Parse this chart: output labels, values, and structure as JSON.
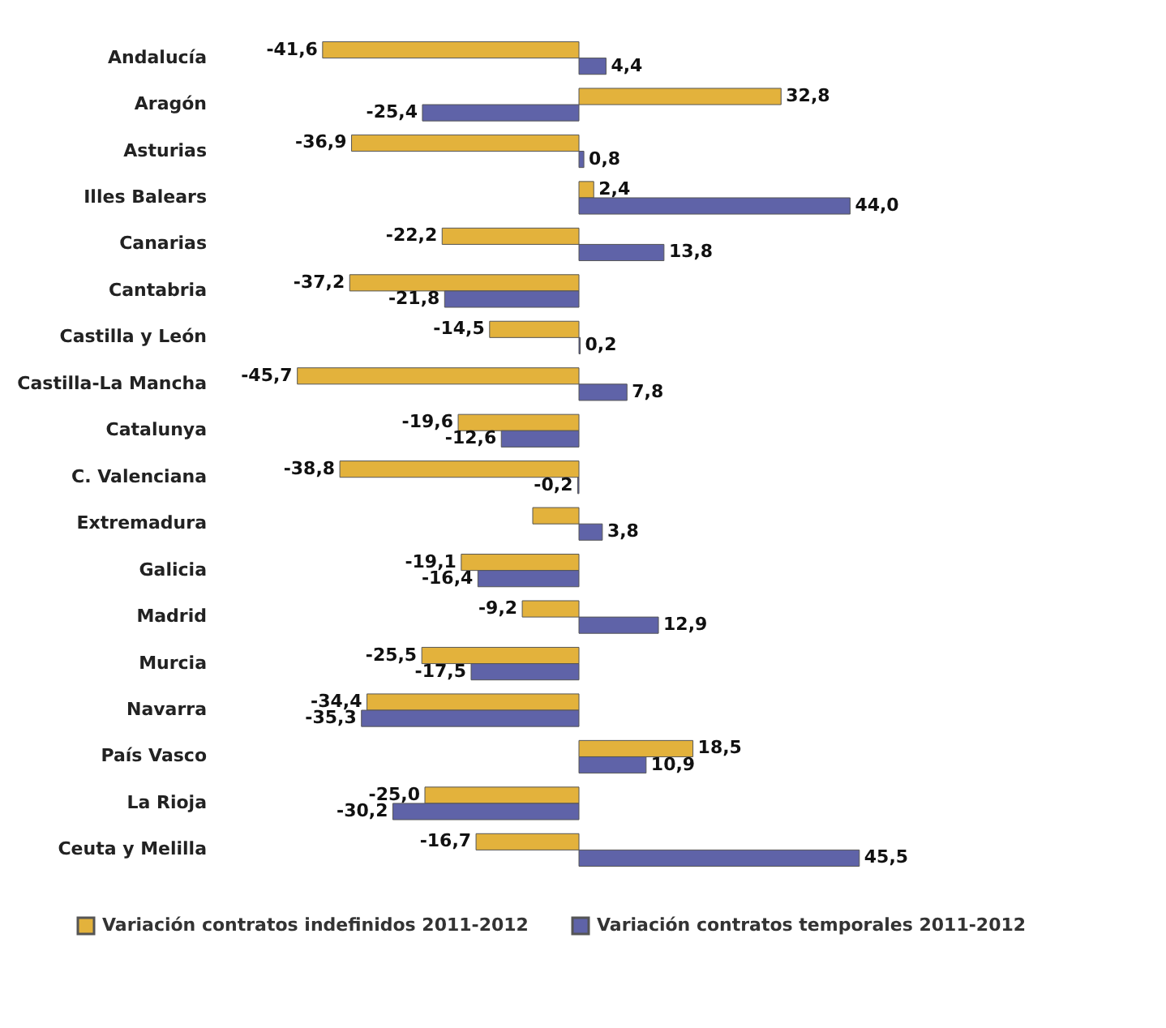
{
  "chart_data": {
    "type": "bar",
    "orientation": "horizontal",
    "legend": "bottom",
    "categories": [
      "Andalucía",
      "Aragón",
      "Asturias",
      "Illes Balears",
      "Canarias",
      "Cantabria",
      "Castilla y León",
      "Castilla-La Mancha",
      "Catalunya",
      "C. Valenciana",
      "Extremadura",
      "Galicia",
      "Madrid",
      "Murcia",
      "Navarra",
      "País Vasco",
      "La Rioja",
      "Ceuta  y Melilla"
    ],
    "series": [
      {
        "name": "Variación contratos indefinidos 2011-2012",
        "color": "#e3b23c",
        "values": [
          -41.6,
          32.8,
          -36.9,
          2.4,
          -22.2,
          -37.2,
          -14.5,
          -45.7,
          -19.6,
          -38.8,
          -7.5,
          -19.1,
          -9.2,
          -25.5,
          -34.4,
          18.5,
          -25.0,
          -16.7
        ],
        "value_labels": [
          "-41,6",
          "32,8",
          "-36,9",
          "2,4",
          "-22,2",
          "-37,2",
          "-14,5",
          "-45,7",
          "-19,6",
          "-38,8",
          null,
          "-19,1",
          "-9,2",
          "-25,5",
          "-34,4",
          "18,5",
          "-25,0",
          "-16,7"
        ]
      },
      {
        "name": "Variación contratos temporales 2011-2012",
        "color": "#5f63a8",
        "values": [
          4.4,
          -25.4,
          0.8,
          44.0,
          13.8,
          -21.8,
          0.2,
          7.8,
          -12.6,
          -0.2,
          3.8,
          -16.4,
          12.9,
          -17.5,
          -35.3,
          10.9,
          -30.2,
          45.5
        ],
        "value_labels": [
          "4,4",
          "-25,4",
          "0,8",
          "44,0",
          "13,8",
          "-21,8",
          "0,2",
          "7,8",
          "-12,6",
          "-0,2",
          "3,8",
          "-16,4",
          "12,9",
          "-17,5",
          "-35,3",
          "10,9",
          "-30,2",
          "45,5"
        ]
      }
    ]
  }
}
